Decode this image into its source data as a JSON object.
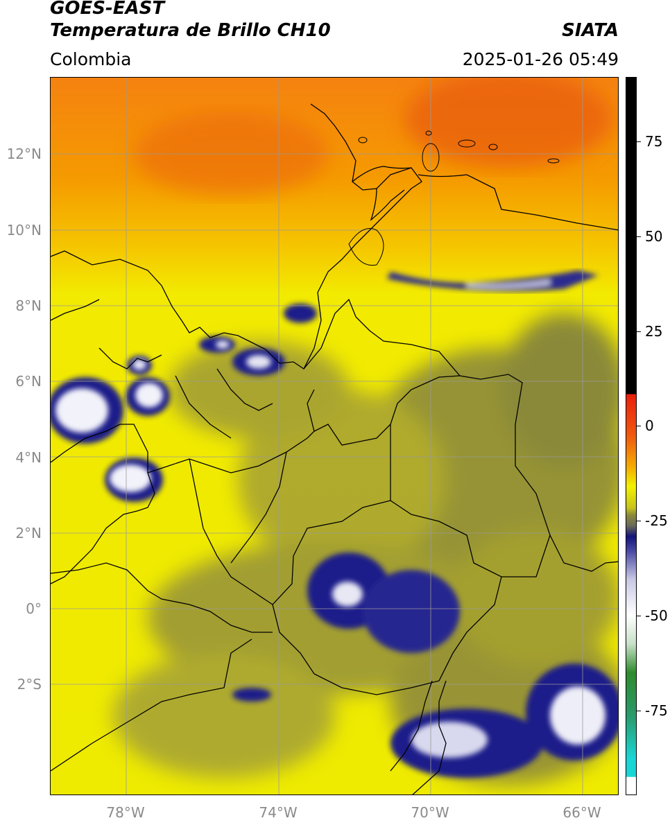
{
  "header": {
    "title_line1": "GOES-EAST",
    "title_line2": "Temperatura de Brillo CH10",
    "brand": "SIATA",
    "region": "Colombia",
    "datetime": "2025-01-26 05:49"
  },
  "axes": {
    "lat_labels": [
      "12°N",
      "10°N",
      "8°N",
      "6°N",
      "4°N",
      "2°N",
      "0°",
      "2°S"
    ],
    "lon_labels": [
      "78°W",
      "74°W",
      "70°W",
      "66°W"
    ]
  },
  "colorbar": {
    "tick_labels": [
      "75",
      "50",
      "25",
      "0",
      "-25",
      "-50",
      "-75"
    ],
    "colors": {
      "black": "#000000",
      "red": "#e8200c",
      "orange": "#f5a000",
      "yellow": "#f2f200",
      "olive": "#7f7f42",
      "navy": "#1a1a8a",
      "white": "#ffffff",
      "green": "#2e8b2e",
      "cyan": "#19d6d6"
    }
  },
  "map_colors": {
    "ocean_warm": "#f58a10",
    "land_yellow": "#f0ea00",
    "olive_cloud": "#8c8a3a",
    "cold_cloud": "#20208a",
    "coldest": "#ffffff",
    "borders": "#000000",
    "grid": "#9a9a9a"
  }
}
